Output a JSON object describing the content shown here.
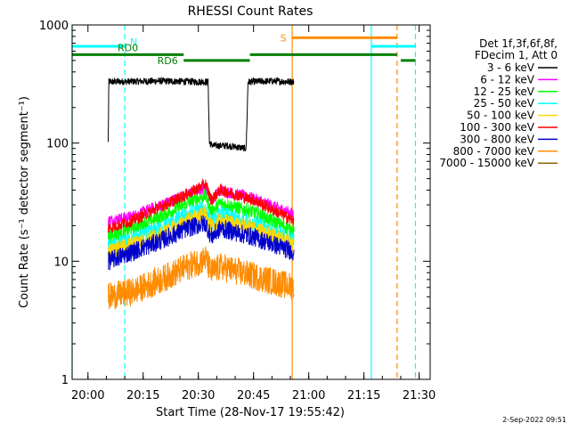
{
  "chart_data": {
    "type": "line",
    "title": "RHESSI Count Rates",
    "xlabel": "Start Time (28-Nov-17 19:55:42)",
    "ylabel": "Count Rate (s⁻¹ detector segment⁻¹)",
    "y_scale": "log",
    "ylim": [
      1,
      1000
    ],
    "xlim": [
      "19:55:42",
      "21:33:00"
    ],
    "x_ticks": [
      "20:00",
      "20:15",
      "20:30",
      "20:45",
      "21:00",
      "21:15",
      "21:30"
    ],
    "y_ticks": [
      "1",
      "10",
      "100",
      "1000"
    ],
    "grid": false,
    "legend_position": "right",
    "legend_header": [
      "Det 1f,3f,6f,8f,",
      "FDecim 1, Att 0"
    ],
    "timestamp": "2-Sep-2022 09:51",
    "series": [
      {
        "name": "3 - 6 keV",
        "color": "#000000",
        "noise": 0.03,
        "points": [
          [
            "20:05:30",
            100
          ],
          [
            "20:05:40",
            330
          ],
          [
            "20:20:00",
            335
          ],
          [
            "20:32:00",
            330
          ],
          [
            "20:32:40",
            330
          ],
          [
            "20:33:00",
            100
          ],
          [
            "20:34:00",
            95
          ],
          [
            "20:38:00",
            95
          ],
          [
            "20:43:00",
            90
          ],
          [
            "20:43:30",
            330
          ],
          [
            "20:50:00",
            335
          ],
          [
            "20:56:00",
            330
          ]
        ]
      },
      {
        "name": "6 - 12 keV",
        "color": "#ff00ff",
        "noise": 0.05,
        "points": [
          [
            "20:05:30",
            22
          ],
          [
            "20:12:00",
            24
          ],
          [
            "20:20:00",
            30
          ],
          [
            "20:27:00",
            37
          ],
          [
            "20:32:00",
            42
          ],
          [
            "20:33:30",
            33
          ],
          [
            "20:36:00",
            40
          ],
          [
            "20:45:00",
            34
          ],
          [
            "20:56:00",
            25
          ]
        ]
      },
      {
        "name": "12 - 25 keV",
        "color": "#00ff00",
        "noise": 0.06,
        "points": [
          [
            "20:05:30",
            16
          ],
          [
            "20:12:00",
            19
          ],
          [
            "20:20:00",
            24
          ],
          [
            "20:27:00",
            31
          ],
          [
            "20:32:00",
            36
          ],
          [
            "20:33:30",
            26
          ],
          [
            "20:36:00",
            31
          ],
          [
            "20:45:00",
            26
          ],
          [
            "20:56:00",
            18
          ]
        ]
      },
      {
        "name": "25 - 50 keV",
        "color": "#00ffff",
        "noise": 0.07,
        "points": [
          [
            "20:05:30",
            13
          ],
          [
            "20:12:00",
            15
          ],
          [
            "20:20:00",
            19
          ],
          [
            "20:27:00",
            25
          ],
          [
            "20:32:00",
            28
          ],
          [
            "20:33:30",
            21
          ],
          [
            "20:36:00",
            25
          ],
          [
            "20:45:00",
            21
          ],
          [
            "20:56:00",
            15
          ]
        ]
      },
      {
        "name": "50 - 100 keV",
        "color": "#ffd700",
        "noise": 0.07,
        "points": [
          [
            "20:05:30",
            12
          ],
          [
            "20:12:00",
            14
          ],
          [
            "20:20:00",
            17
          ],
          [
            "20:27:00",
            22
          ],
          [
            "20:32:00",
            25
          ],
          [
            "20:33:30",
            19
          ],
          [
            "20:36:00",
            22
          ],
          [
            "20:45:00",
            19
          ],
          [
            "20:56:00",
            14
          ]
        ]
      },
      {
        "name": "100 - 300 keV",
        "color": "#ff0000",
        "noise": 0.05,
        "points": [
          [
            "20:05:30",
            19
          ],
          [
            "20:12:00",
            22
          ],
          [
            "20:20:00",
            29
          ],
          [
            "20:27:00",
            37
          ],
          [
            "20:32:00",
            45
          ],
          [
            "20:33:30",
            33
          ],
          [
            "20:36:00",
            40
          ],
          [
            "20:45:00",
            33
          ],
          [
            "20:56:00",
            22
          ]
        ]
      },
      {
        "name": "300 - 800 keV",
        "color": "#0000cd",
        "noise": 0.08,
        "points": [
          [
            "20:05:30",
            10
          ],
          [
            "20:12:00",
            12
          ],
          [
            "20:20:00",
            15
          ],
          [
            "20:27:00",
            19
          ],
          [
            "20:32:00",
            21
          ],
          [
            "20:33:30",
            16
          ],
          [
            "20:36:00",
            19
          ],
          [
            "20:45:00",
            16
          ],
          [
            "20:56:00",
            12
          ]
        ]
      },
      {
        "name": "800 - 7000 keV",
        "color": "#ff8c00",
        "noise": 0.12,
        "points": [
          [
            "20:05:30",
            5
          ],
          [
            "20:12:00",
            5.5
          ],
          [
            "20:20:00",
            7
          ],
          [
            "20:27:00",
            9
          ],
          [
            "20:32:00",
            10.5
          ],
          [
            "20:33:30",
            8
          ],
          [
            "20:36:00",
            9
          ],
          [
            "20:45:00",
            7.5
          ],
          [
            "20:56:00",
            6
          ]
        ]
      },
      {
        "name": "7000 - 15000 keV",
        "color": "#8b6508",
        "noise": 0.0,
        "points": []
      }
    ],
    "attenuator_bars": [
      {
        "label": "N",
        "color": "#00ffff",
        "level": 660,
        "segments": [
          [
            "19:55:42",
            "20:10:00"
          ],
          [
            "21:17:00",
            "21:29:00"
          ]
        ]
      },
      {
        "label": "S",
        "color": "#ff8c00",
        "level": 780,
        "segments": [
          [
            "20:55:30",
            "21:24:00"
          ]
        ]
      },
      {
        "label": "RD0",
        "color": "#008000",
        "level": 560,
        "segments": [
          [
            "19:55:42",
            "20:26:00"
          ],
          [
            "20:44:00",
            "21:24:00"
          ]
        ]
      },
      {
        "label": "RD6",
        "color": "#008000",
        "level": 500,
        "segments": [
          [
            "20:26:00",
            "20:44:00"
          ],
          [
            "21:25:00",
            "21:29:00"
          ]
        ]
      }
    ],
    "vertical_markers": [
      {
        "time": "19:55:42",
        "color": "#00ffff",
        "style": "solid"
      },
      {
        "time": "20:10:00",
        "color": "#00ffff",
        "style": "dashed"
      },
      {
        "time": "20:55:30",
        "color": "#ff8c00",
        "style": "solid"
      },
      {
        "time": "21:17:00",
        "color": "#00ffff",
        "style": "solid"
      },
      {
        "time": "21:24:00",
        "color": "#ff8c00",
        "style": "dashed"
      },
      {
        "time": "21:29:00",
        "color": "#00ffff",
        "style": "dashed"
      }
    ]
  }
}
